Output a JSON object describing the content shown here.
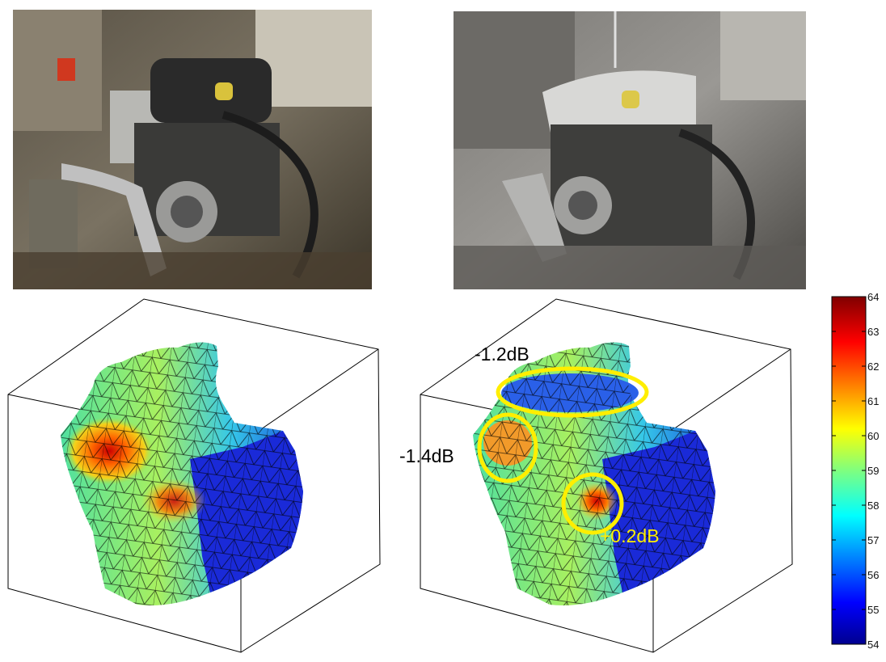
{
  "colorbar": {
    "unit": "dB",
    "min": 54,
    "max": 64,
    "ticks": [
      "64",
      "63",
      "62",
      "61",
      "60",
      "59",
      "58",
      "57",
      "56",
      "55",
      "54"
    ],
    "colormap": "jet"
  },
  "annotations": [
    {
      "label": "-1.2dB",
      "color": "#000000"
    },
    {
      "label": "-1.4dB",
      "color": "#000000"
    },
    {
      "label": "+0.2dB",
      "color": "#ffee00"
    }
  ],
  "highlight_color": "#ffee00",
  "colors": {
    "low": "#00008f",
    "mid": "#7fff7f",
    "high": "#800000"
  },
  "photos": [
    {
      "name": "engine-photo-before",
      "tint": "#6b6254"
    },
    {
      "name": "engine-photo-after",
      "tint": "#8a8884"
    }
  ]
}
